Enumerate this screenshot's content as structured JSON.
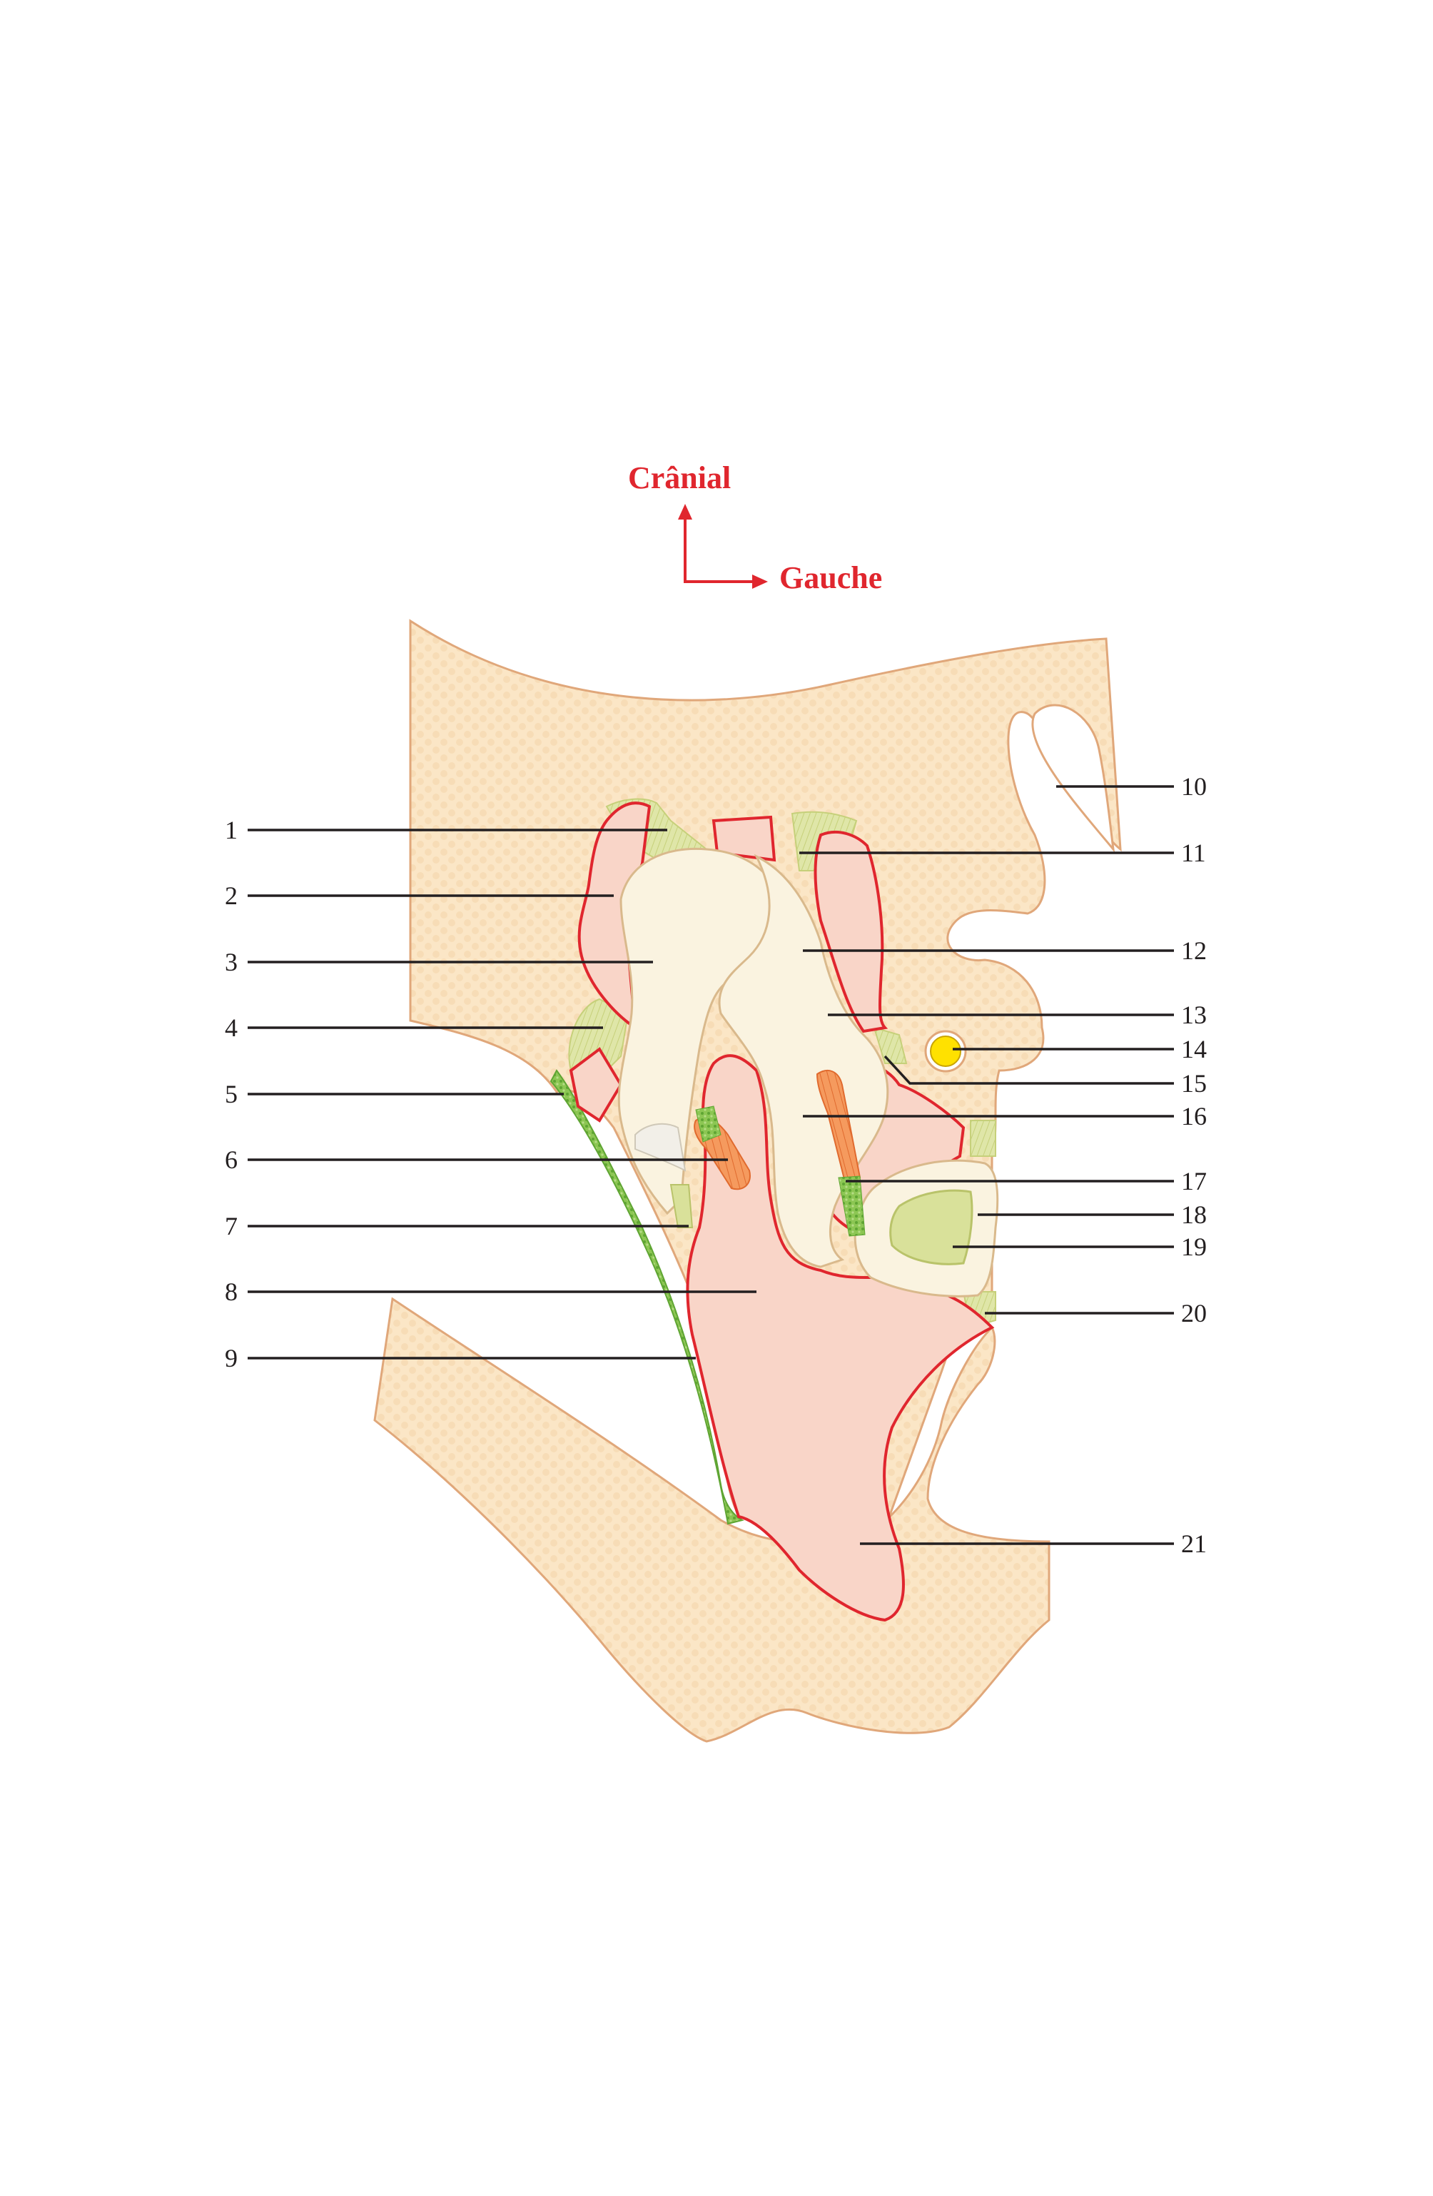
{
  "orientation": {
    "cranial_label": "Crânial",
    "left_label": "Gauche",
    "arrow_color": "#e0262e"
  },
  "colors": {
    "tissue_fill": "#fbe6c6",
    "tissue_outline": "#e0a77a",
    "cartilage_fill": "#faf3e0",
    "cartilage_outline": "#d9b98c",
    "muscle_fill": "#f9d5c8",
    "muscle_outline": "#e0262e",
    "ligament_fill": "#d9e19a",
    "mucosa_green": "#79b943",
    "muscle_fiber": "#f08a4b",
    "artery_fill": "#ffe100"
  },
  "labels": {
    "l1": "1",
    "l2": "2",
    "l3": "3",
    "l4": "4",
    "l5": "5",
    "l6": "6",
    "l7": "7",
    "l8": "8",
    "l9": "9",
    "l10": "10",
    "l11": "11",
    "l12": "12",
    "l13": "13",
    "l14": "14",
    "l15": "15",
    "l16": "16",
    "l17": "17",
    "l18": "18",
    "l19": "19",
    "l20": "20",
    "l21": "21"
  }
}
